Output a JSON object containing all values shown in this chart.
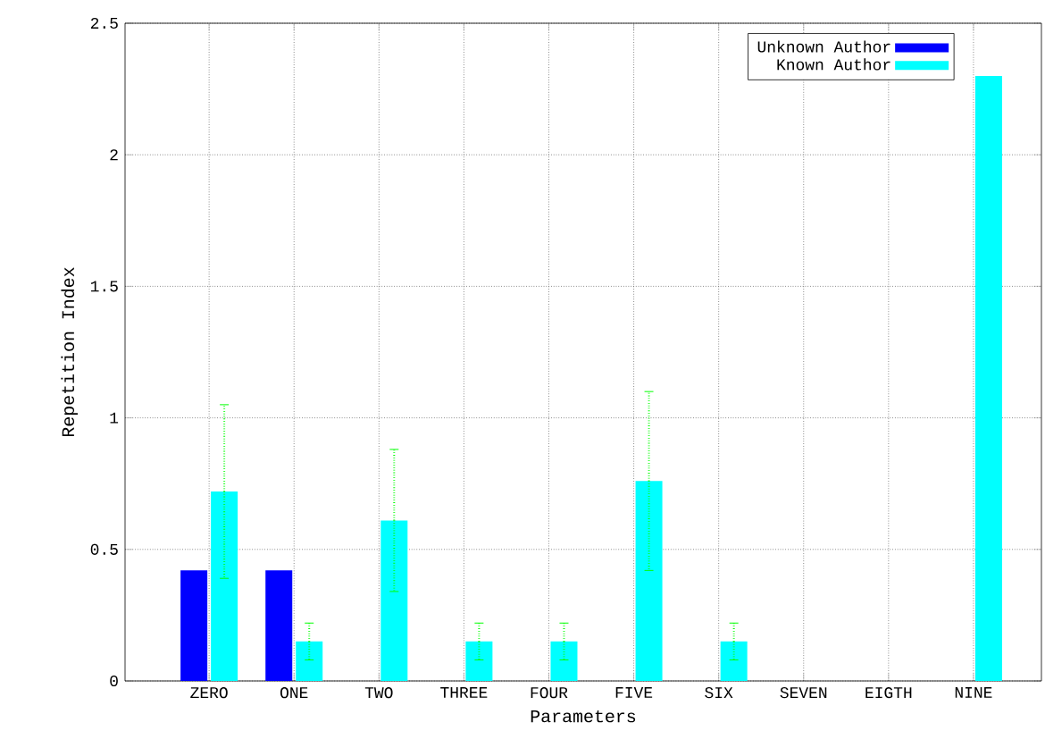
{
  "chart_data": {
    "type": "bar",
    "xlabel": "Parameters",
    "ylabel": "Repetition Index",
    "categories": [
      "ZERO",
      "ONE",
      "TWO",
      "THREE",
      "FOUR",
      "FIVE",
      "SIX",
      "SEVEN",
      "EIGTH",
      "NINE"
    ],
    "series": [
      {
        "name": "Unknown Author",
        "color": "#0000ff",
        "values": [
          0.42,
          0.42,
          0,
          0,
          0,
          0,
          0,
          0,
          0,
          0
        ]
      },
      {
        "name": "Known Author",
        "color": "#00ffff",
        "values": [
          0.72,
          0.15,
          0.61,
          0.15,
          0.15,
          0.76,
          0.15,
          0,
          0,
          2.3
        ],
        "errors": [
          0.33,
          0.07,
          0.27,
          0.07,
          0.07,
          0.34,
          0.07,
          null,
          null,
          null
        ]
      }
    ],
    "ylim": [
      0,
      2.5
    ],
    "yticks": [
      0,
      0.5,
      1,
      1.5,
      2,
      2.5
    ],
    "grid": true,
    "legend": "top right"
  }
}
